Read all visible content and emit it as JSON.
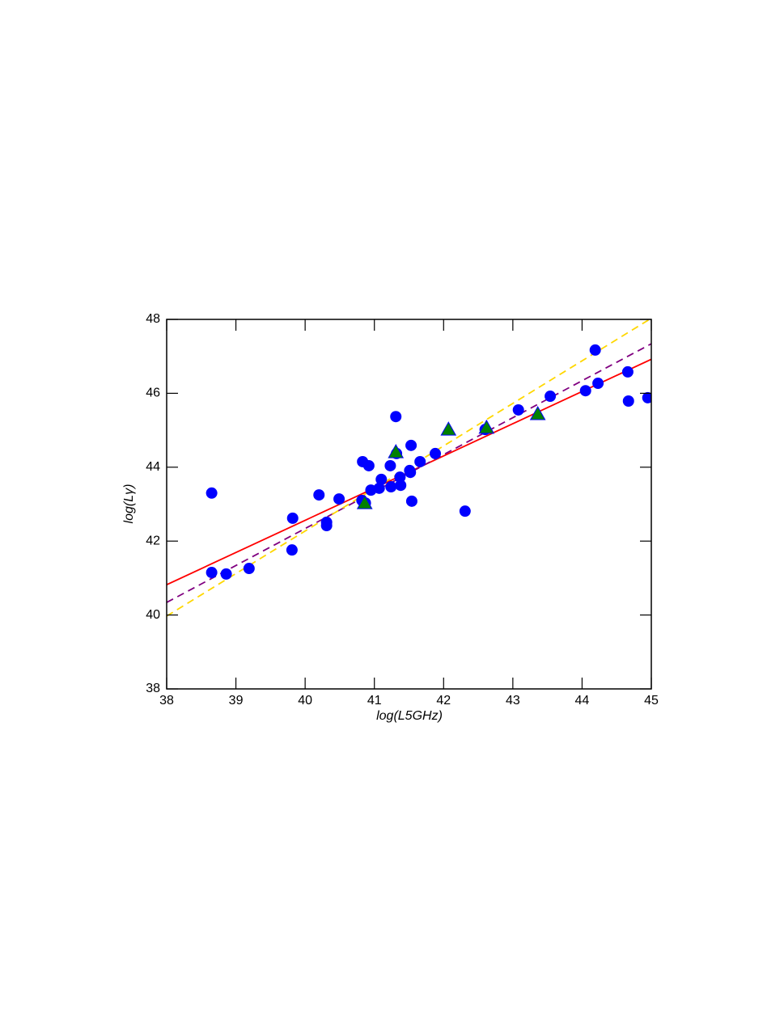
{
  "chart_data": {
    "type": "scatter",
    "xlabel": "log(L5GHz)",
    "ylabel": "log(Lγ)",
    "xlim": [
      38,
      45
    ],
    "ylim": [
      38,
      48
    ],
    "xticks": [
      38,
      39,
      40,
      41,
      42,
      43,
      44,
      45
    ],
    "yticks": [
      38,
      40,
      42,
      44,
      46,
      48
    ],
    "series": [
      {
        "color": "#0000ff",
        "marker": "circle",
        "x": [
          38.65,
          38.65,
          38.86,
          39.19,
          39.82,
          39.81,
          40.2,
          40.31,
          40.31,
          40.49,
          40.83,
          40.92,
          40.82,
          40.87,
          40.95,
          41.07,
          41.1,
          41.23,
          41.24,
          41.31,
          41.32,
          41.37,
          41.38,
          41.51,
          41.52,
          41.53,
          41.54,
          41.66,
          41.88,
          42.31,
          42.6,
          43.08,
          43.54,
          44.05,
          44.19,
          44.23,
          44.66,
          44.67,
          44.95
        ],
        "values": [
          43.3,
          41.15,
          41.11,
          41.26,
          42.62,
          41.76,
          43.25,
          42.51,
          42.42,
          43.14,
          44.15,
          44.04,
          43.1,
          43.03,
          43.38,
          43.43,
          43.67,
          44.04,
          43.47,
          45.37,
          44.37,
          43.73,
          43.51,
          43.91,
          43.86,
          44.59,
          43.08,
          44.15,
          44.37,
          42.81,
          45.02,
          45.55,
          45.92,
          46.07,
          47.17,
          46.27,
          46.58,
          45.79,
          45.88
        ]
      },
      {
        "color": "#008000",
        "marker": "triangle",
        "x": [
          40.86,
          41.31,
          42.07,
          42.62,
          43.36
        ],
        "values": [
          43.03,
          44.41,
          45.02,
          45.07,
          45.44
        ]
      },
      {
        "color": "#ff0000",
        "marker": "line",
        "dash": false,
        "x": [
          38,
          45
        ],
        "values": [
          40.82,
          46.92
        ]
      },
      {
        "color": "#800080",
        "marker": "line",
        "dash": true,
        "x": [
          38,
          45
        ],
        "values": [
          40.34,
          47.34
        ]
      },
      {
        "color": "#ffd700",
        "marker": "line",
        "dash": true,
        "x": [
          38,
          45
        ],
        "values": [
          39.97,
          48.03
        ]
      }
    ]
  }
}
